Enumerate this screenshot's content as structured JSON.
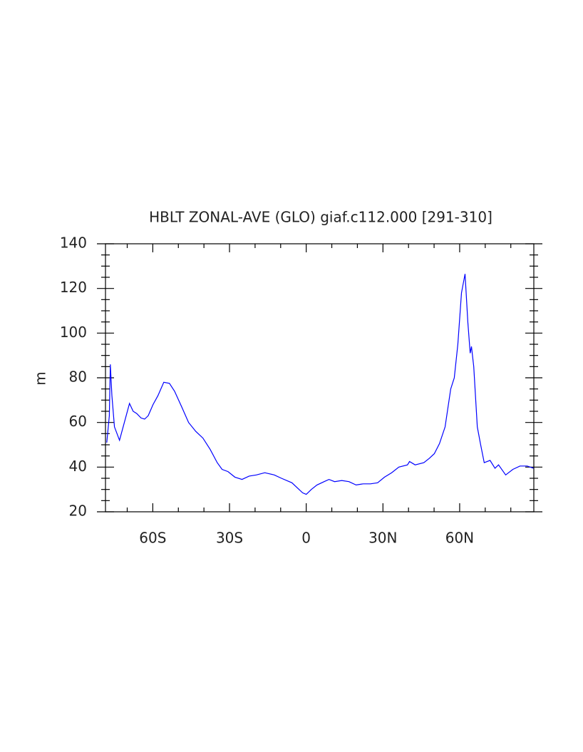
{
  "chart_data": {
    "type": "line",
    "title": "HBLT ZONAL-AVE (GLO) giaf.c112.000 [291-310]",
    "ylabel": "m",
    "xlim": [
      -78.5,
      89
    ],
    "ylim": [
      20,
      140
    ],
    "xticks": [
      {
        "value": -60,
        "label": "60S"
      },
      {
        "value": -30,
        "label": "30S"
      },
      0,
      {
        "value": 30,
        "label": "30N"
      },
      {
        "value": 60,
        "label": "60N"
      }
    ],
    "xminorticks": [
      -70,
      -50,
      -40,
      -20,
      -10,
      10,
      20,
      40,
      50,
      70,
      80
    ],
    "yticks": [
      20,
      40,
      60,
      80,
      100,
      120,
      140
    ],
    "yminorticks": [
      25,
      30,
      35,
      45,
      50,
      55,
      65,
      70,
      75,
      85,
      90,
      95,
      105,
      110,
      115,
      125,
      130,
      135
    ],
    "series": [
      {
        "color": "#0000ff",
        "x": [
          -78,
          -77,
          -76.6,
          -76,
          -75,
          -73,
          -69.1,
          -67.7,
          -66.3,
          -64.6,
          -63.2,
          -61.8,
          -59.9,
          -58,
          -55.7,
          -53.5,
          -51.5,
          -48.7,
          -46,
          -43.2,
          -40.4,
          -37.6,
          -34.8,
          -32.9,
          -30.6,
          -27.9,
          -25.1,
          -22.3,
          -19.5,
          -16.2,
          -12.5,
          -9.7,
          -5.6,
          -2.8,
          -1.4,
          0,
          2,
          4.2,
          7,
          8.9,
          11.1,
          13.9,
          16.7,
          19.5,
          22.3,
          25.1,
          27.9,
          30.6,
          33.4,
          36.2,
          39.6,
          40.4,
          42.6,
          46,
          48.2,
          50.1,
          52.1,
          54.3,
          56.5,
          57.9,
          59.3,
          60.7,
          62.1,
          63.2,
          64.1,
          64.6,
          65.5,
          66.9,
          68.2,
          69.6,
          71.9,
          73.8,
          75.2,
          78,
          80.8,
          83.6,
          86.4,
          88.9
        ],
        "values": [
          51,
          63,
          86,
          72,
          58,
          52,
          68.5,
          65,
          64,
          62,
          61.5,
          63,
          68,
          72,
          78,
          77.5,
          74,
          67,
          60,
          56,
          53,
          48,
          42,
          39,
          38,
          35.5,
          34.5,
          36,
          36.5,
          37.5,
          36.5,
          35,
          33,
          30,
          28.5,
          27.8,
          30,
          32,
          33.5,
          34.5,
          33.5,
          34,
          33.5,
          32,
          32.5,
          32.5,
          33,
          35.5,
          37.5,
          40,
          41,
          42.5,
          41,
          42,
          44,
          46,
          50.5,
          58,
          75,
          80,
          95,
          118,
          126.5,
          105,
          91,
          94,
          85,
          58,
          50,
          42,
          43,
          39.5,
          41,
          36.5,
          39,
          40.5,
          40.5,
          39.5
        ]
      }
    ]
  }
}
